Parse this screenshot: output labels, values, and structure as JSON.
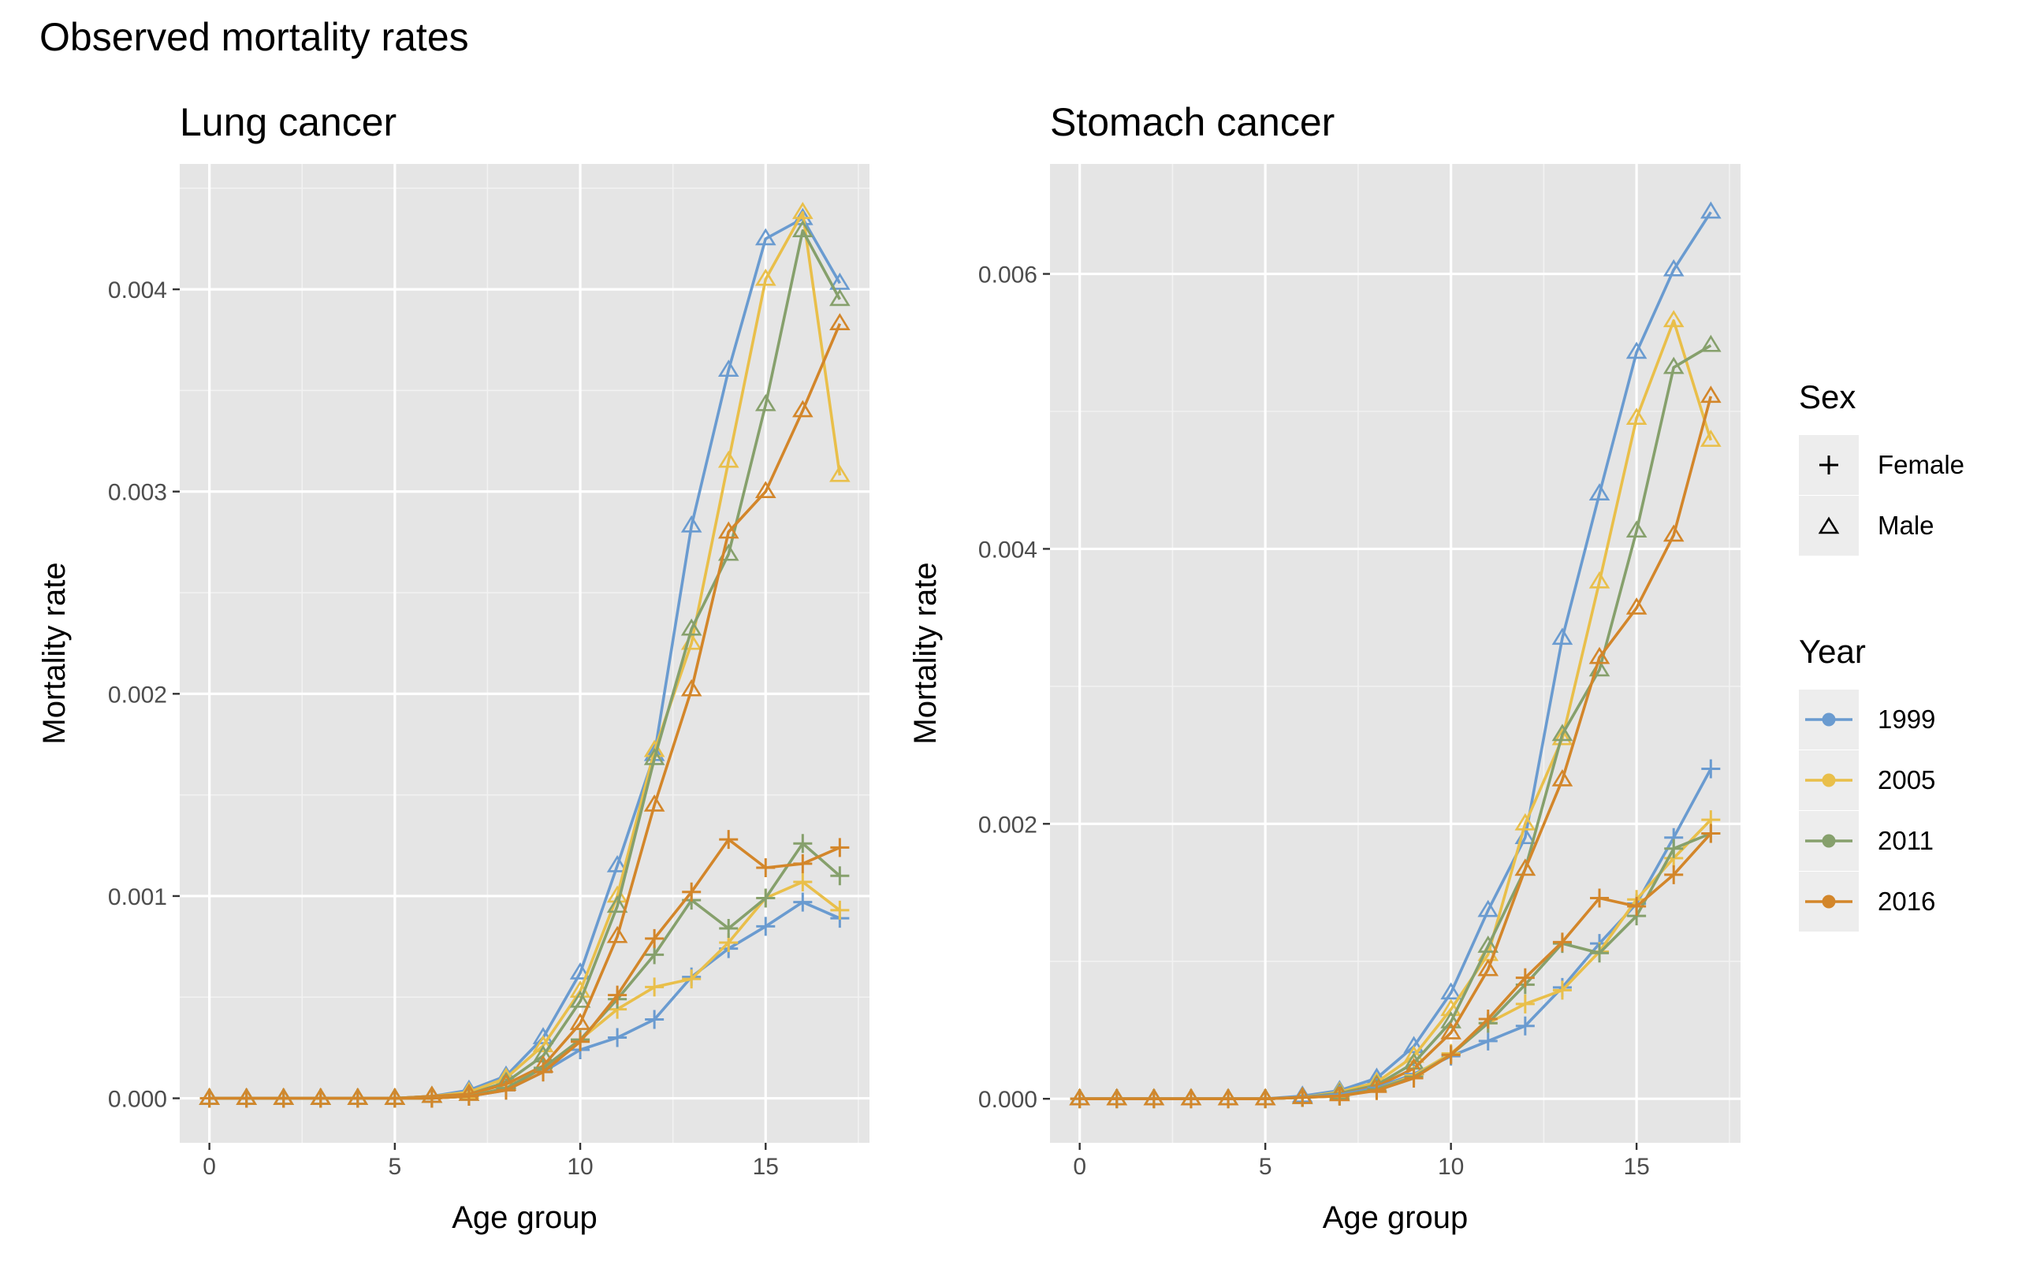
{
  "figure_title": "Observed mortality rates",
  "legend": {
    "sex_title": "Sex",
    "sex_items": [
      {
        "label": "Female",
        "shape": "plus"
      },
      {
        "label": "Male",
        "shape": "triangle"
      }
    ],
    "year_title": "Year",
    "year_items": [
      {
        "label": "1999",
        "color": "#6a9bd0"
      },
      {
        "label": "2005",
        "color": "#e9bf4a"
      },
      {
        "label": "2011",
        "color": "#86a06c"
      },
      {
        "label": "2016",
        "color": "#d3862a"
      }
    ]
  },
  "chart_data": [
    {
      "type": "line",
      "title": "Lung cancer",
      "xlabel": "Age group",
      "ylabel": "Mortality rate",
      "x_ticks": [
        "0",
        "5",
        "10",
        "15"
      ],
      "y_ticks": [
        "0.000",
        "0.001",
        "0.002",
        "0.003",
        "0.004"
      ],
      "xlim": [
        -0.8,
        17.8
      ],
      "ylim": [
        -0.00022,
        0.00462
      ],
      "x": [
        0,
        1,
        2,
        3,
        4,
        5,
        6,
        7,
        8,
        9,
        10,
        11,
        12,
        13,
        14,
        15,
        16,
        17
      ],
      "series": [
        {
          "name": "1999 Male",
          "year": "1999",
          "sex": "Male",
          "color": "#6a9bd0",
          "values": [
            0,
            0,
            0,
            0,
            0,
            0,
            1e-05,
            4e-05,
            0.00011,
            0.0003,
            0.00062,
            0.00115,
            0.0017,
            0.00283,
            0.0036,
            0.00425,
            0.00435,
            0.00403
          ]
        },
        {
          "name": "2005 Male",
          "year": "2005",
          "sex": "Male",
          "color": "#e9bf4a",
          "values": [
            0,
            0,
            0,
            0,
            0,
            0,
            1e-05,
            3e-05,
            0.0001,
            0.00026,
            0.00053,
            0.001,
            0.00172,
            0.00225,
            0.00315,
            0.00405,
            0.00438,
            0.00308
          ]
        },
        {
          "name": "2011 Male",
          "year": "2011",
          "sex": "Male",
          "color": "#86a06c",
          "values": [
            0,
            0,
            0,
            0,
            0,
            0,
            1e-05,
            2e-05,
            8e-05,
            0.00021,
            0.00048,
            0.00095,
            0.00168,
            0.00232,
            0.00269,
            0.00343,
            0.00429,
            0.00395
          ]
        },
        {
          "name": "2016 Male",
          "year": "2016",
          "sex": "Male",
          "color": "#d3862a",
          "values": [
            0,
            0,
            0,
            0,
            0,
            0,
            1e-05,
            2e-05,
            7e-05,
            0.00016,
            0.00037,
            0.0008,
            0.00145,
            0.00202,
            0.0028,
            0.003,
            0.0034,
            0.00383
          ]
        },
        {
          "name": "1999 Female",
          "year": "1999",
          "sex": "Female",
          "color": "#6a9bd0",
          "values": [
            0,
            0,
            0,
            0,
            0,
            0,
            0,
            1e-05,
            4e-05,
            0.00013,
            0.00024,
            0.0003,
            0.00039,
            0.0006,
            0.00074,
            0.00085,
            0.00097,
            0.00089
          ]
        },
        {
          "name": "2005 Female",
          "year": "2005",
          "sex": "Female",
          "color": "#e9bf4a",
          "values": [
            0,
            0,
            0,
            0,
            0,
            0,
            0,
            1e-05,
            5e-05,
            0.00015,
            0.00029,
            0.00044,
            0.00055,
            0.00059,
            0.00077,
            0.00099,
            0.00107,
            0.00093
          ]
        },
        {
          "name": "2011 Female",
          "year": "2011",
          "sex": "Female",
          "color": "#86a06c",
          "values": [
            0,
            0,
            0,
            0,
            0,
            0,
            0,
            1e-05,
            5e-05,
            0.00015,
            0.00029,
            0.00049,
            0.00071,
            0.00098,
            0.00084,
            0.00099,
            0.00126,
            0.0011
          ]
        },
        {
          "name": "2016 Female",
          "year": "2016",
          "sex": "Female",
          "color": "#d3862a",
          "values": [
            0,
            0,
            0,
            0,
            0,
            0,
            0,
            1e-05,
            4e-05,
            0.00013,
            0.00028,
            0.00051,
            0.00079,
            0.00102,
            0.00128,
            0.00114,
            0.00116,
            0.00124
          ]
        }
      ]
    },
    {
      "type": "line",
      "title": "Stomach cancer",
      "xlabel": "Age group",
      "ylabel": "Mortality rate",
      "x_ticks": [
        "0",
        "5",
        "10",
        "15"
      ],
      "y_ticks": [
        "0.000",
        "0.002",
        "0.004",
        "0.006"
      ],
      "xlim": [
        -0.8,
        17.8
      ],
      "ylim": [
        -0.00032,
        0.0068
      ],
      "x": [
        0,
        1,
        2,
        3,
        4,
        5,
        6,
        7,
        8,
        9,
        10,
        11,
        12,
        13,
        14,
        15,
        16,
        17
      ],
      "series": [
        {
          "name": "1999 Male",
          "year": "1999",
          "sex": "Male",
          "color": "#6a9bd0",
          "values": [
            0,
            0,
            0,
            0,
            0,
            0,
            2e-05,
            6e-05,
            0.00015,
            0.00038,
            0.00077,
            0.00137,
            0.0019,
            0.00335,
            0.0044,
            0.00543,
            0.00603,
            0.00645
          ]
        },
        {
          "name": "2005 Male",
          "year": "2005",
          "sex": "Male",
          "color": "#e9bf4a",
          "values": [
            0,
            0,
            0,
            0,
            0,
            0,
            1e-05,
            5e-05,
            0.00012,
            0.00031,
            0.00065,
            0.00105,
            0.002,
            0.00262,
            0.00376,
            0.00495,
            0.00566,
            0.00479
          ]
        },
        {
          "name": "2011 Male",
          "year": "2011",
          "sex": "Male",
          "color": "#86a06c",
          "values": [
            0,
            0,
            0,
            0,
            0,
            0,
            1e-05,
            4e-05,
            0.0001,
            0.00026,
            0.00056,
            0.00111,
            0.00167,
            0.00265,
            0.00312,
            0.00413,
            0.00532,
            0.00548
          ]
        },
        {
          "name": "2016 Male",
          "year": "2016",
          "sex": "Male",
          "color": "#d3862a",
          "values": [
            0,
            0,
            0,
            0,
            0,
            0,
            1e-05,
            3e-05,
            9e-05,
            0.00022,
            0.00048,
            0.00094,
            0.00167,
            0.00232,
            0.00321,
            0.00357,
            0.0041,
            0.00511
          ]
        },
        {
          "name": "1999 Female",
          "year": "1999",
          "sex": "Female",
          "color": "#6a9bd0",
          "values": [
            0,
            0,
            0,
            0,
            0,
            0,
            1e-05,
            3e-05,
            8e-05,
            0.00018,
            0.00031,
            0.00042,
            0.00053,
            0.00081,
            0.00113,
            0.00142,
            0.0019,
            0.0024
          ]
        },
        {
          "name": "2005 Female",
          "year": "2005",
          "sex": "Female",
          "color": "#e9bf4a",
          "values": [
            0,
            0,
            0,
            0,
            0,
            0,
            1e-05,
            2e-05,
            7e-05,
            0.00017,
            0.00033,
            0.00055,
            0.00069,
            0.00079,
            0.00107,
            0.00145,
            0.00175,
            0.00203
          ]
        },
        {
          "name": "2011 Female",
          "year": "2011",
          "sex": "Female",
          "color": "#86a06c",
          "values": [
            0,
            0,
            0,
            0,
            0,
            0,
            1e-05,
            2e-05,
            7e-05,
            0.00016,
            0.00032,
            0.00055,
            0.00083,
            0.00113,
            0.00106,
            0.00133,
            0.00182,
            0.00193
          ]
        },
        {
          "name": "2016 Female",
          "year": "2016",
          "sex": "Female",
          "color": "#d3862a",
          "values": [
            0,
            0,
            0,
            0,
            0,
            0,
            1e-05,
            2e-05,
            6e-05,
            0.00015,
            0.00032,
            0.00058,
            0.00088,
            0.00114,
            0.00146,
            0.0014,
            0.00163,
            0.00193
          ]
        }
      ]
    }
  ]
}
